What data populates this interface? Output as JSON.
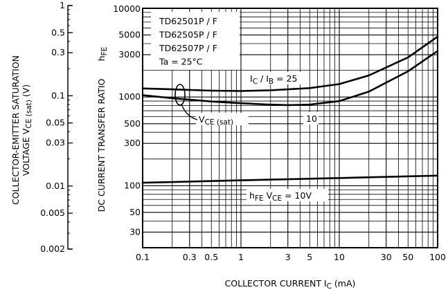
{
  "chart_data": {
    "type": "line",
    "title": "",
    "xlabel": "COLLECTOR CURRENT",
    "xlabel_symbol": "I",
    "xlabel_symbol_sub": "C",
    "xlabel_unit": "(mA)",
    "x_scale": "log",
    "xlim": [
      0.1,
      100
    ],
    "x_ticks": [
      "0.1",
      "0.3",
      "0.5",
      "1",
      "3",
      "5",
      "10",
      "30",
      "50",
      "100"
    ],
    "left_axis": {
      "label_line1": "COLLECTOR-EMITTER SATURATION",
      "label_line2_main": "VOLTAGE   V",
      "label_line2_sub": "CE (sat)",
      "label_line2_unit": "(V)",
      "scale": "log",
      "ylim": [
        0.002,
        1
      ],
      "ticks": [
        "1",
        "0.5",
        "0.3",
        "0.1",
        "0.05",
        "0.03",
        "0.01",
        "0.005",
        "0.002"
      ]
    },
    "right_axis": {
      "label_main": "DC CURRENT TRANSFER RATIO",
      "label_symbol": "h",
      "label_symbol_sub": "FE",
      "scale": "log",
      "ylim": [
        20,
        10000
      ],
      "ticks": [
        "10000",
        "5000",
        "3000",
        "1000",
        "500",
        "300",
        "100",
        "50",
        "30"
      ]
    },
    "legend_box": {
      "lines": [
        "TD62501P / F",
        "TD62505P / F",
        "TD62507P / F",
        "Ta = 25°C"
      ],
      "placement": "top-left"
    },
    "annotations": {
      "ic_ib_main": "I",
      "ic_ib_sub1": "C",
      "ic_ib_mid": " / I",
      "ic_ib_sub2": "B",
      "ic_ib_value": " = 25",
      "ten": "10",
      "vce_main": "V",
      "vce_sub": "CE (sat)",
      "hfe_main": "h",
      "hfe_sub": "FE",
      "hfe_cond_main": "V",
      "hfe_cond_sub": "CE",
      "hfe_cond_value": " = 10V"
    },
    "grid": true,
    "series": [
      {
        "axis": "right",
        "x": [
          0.1,
          0.2,
          0.5,
          1,
          2,
          5,
          10,
          20,
          50,
          100
        ],
        "y": [
          1250,
          1220,
          1180,
          1170,
          1190,
          1260,
          1400,
          1750,
          2800,
          4800
        ]
      },
      {
        "axis": "right",
        "x": [
          0.1,
          0.2,
          0.5,
          1,
          2,
          3,
          5,
          10,
          20,
          50,
          100
        ],
        "y": [
          1050,
          970,
          890,
          850,
          820,
          810,
          820,
          900,
          1150,
          1950,
          3300
        ]
      },
      {
        "axis": "right",
        "x": [
          0.1,
          1,
          10,
          100
        ],
        "y": [
          108,
          115,
          122,
          130
        ]
      }
    ]
  }
}
